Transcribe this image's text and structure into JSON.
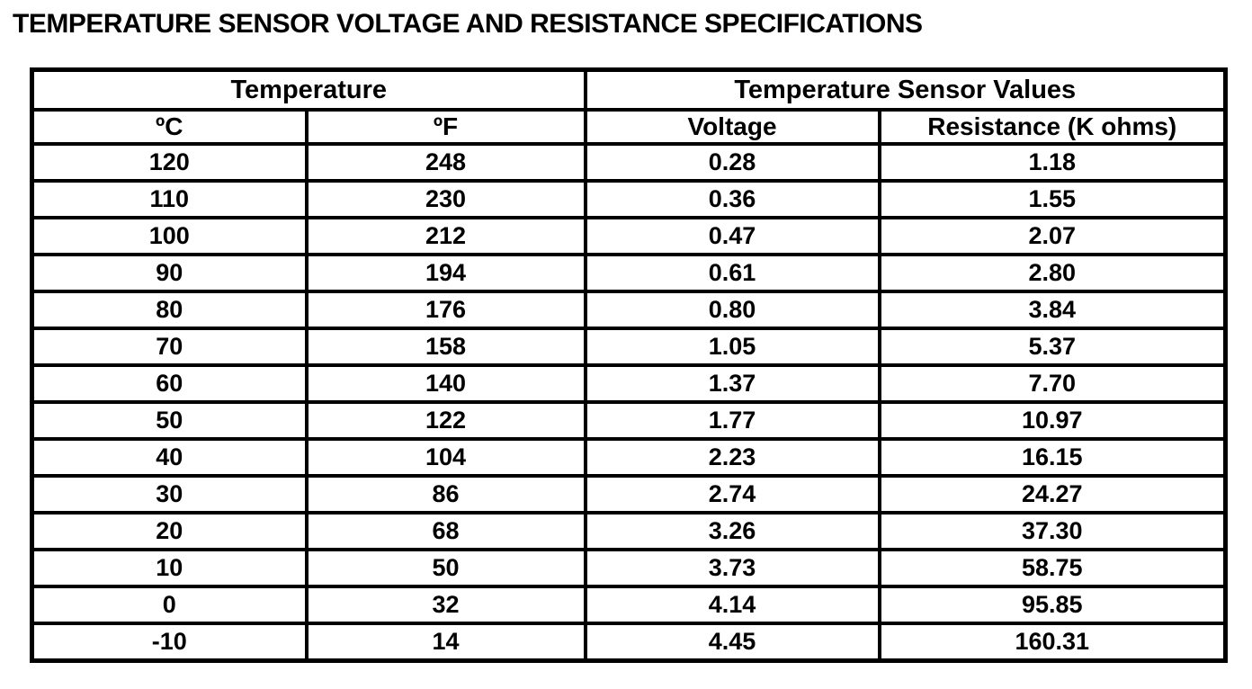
{
  "title": "TEMPERATURE SENSOR VOLTAGE AND RESISTANCE SPECIFICATIONS",
  "table": {
    "group_headers": [
      {
        "label": "Temperature"
      },
      {
        "label": "Temperature Sensor Values"
      }
    ],
    "columns": [
      "ºC",
      "ºF",
      "Voltage",
      "Resistance (K ohms)"
    ],
    "rows": [
      [
        "120",
        "248",
        "0.28",
        "1.18"
      ],
      [
        "110",
        "230",
        "0.36",
        "1.55"
      ],
      [
        "100",
        "212",
        "0.47",
        "2.07"
      ],
      [
        "90",
        "194",
        "0.61",
        "2.80"
      ],
      [
        "80",
        "176",
        "0.80",
        "3.84"
      ],
      [
        "70",
        "158",
        "1.05",
        "5.37"
      ],
      [
        "60",
        "140",
        "1.37",
        "7.70"
      ],
      [
        "50",
        "122",
        "1.77",
        "10.97"
      ],
      [
        "40",
        "104",
        "2.23",
        "16.15"
      ],
      [
        "30",
        "86",
        "2.74",
        "24.27"
      ],
      [
        "20",
        "68",
        "3.26",
        "37.30"
      ],
      [
        "10",
        "50",
        "3.73",
        "58.75"
      ],
      [
        "0",
        "32",
        "4.14",
        "95.85"
      ],
      [
        "-10",
        "14",
        "4.45",
        "160.31"
      ]
    ]
  },
  "chart_data": {
    "type": "table",
    "title": "TEMPERATURE SENSOR VOLTAGE AND RESISTANCE SPECIFICATIONS",
    "columns": [
      "Temperature (ºC)",
      "Temperature (ºF)",
      "Voltage",
      "Resistance (K ohms)"
    ],
    "rows": [
      [
        120,
        248,
        0.28,
        1.18
      ],
      [
        110,
        230,
        0.36,
        1.55
      ],
      [
        100,
        212,
        0.47,
        2.07
      ],
      [
        90,
        194,
        0.61,
        2.8
      ],
      [
        80,
        176,
        0.8,
        3.84
      ],
      [
        70,
        158,
        1.05,
        5.37
      ],
      [
        60,
        140,
        1.37,
        7.7
      ],
      [
        50,
        122,
        1.77,
        10.97
      ],
      [
        40,
        104,
        2.23,
        16.15
      ],
      [
        30,
        86,
        2.74,
        24.27
      ],
      [
        20,
        68,
        3.26,
        37.3
      ],
      [
        10,
        50,
        3.73,
        58.75
      ],
      [
        0,
        32,
        4.14,
        95.85
      ],
      [
        -10,
        14,
        4.45,
        160.31
      ]
    ]
  }
}
